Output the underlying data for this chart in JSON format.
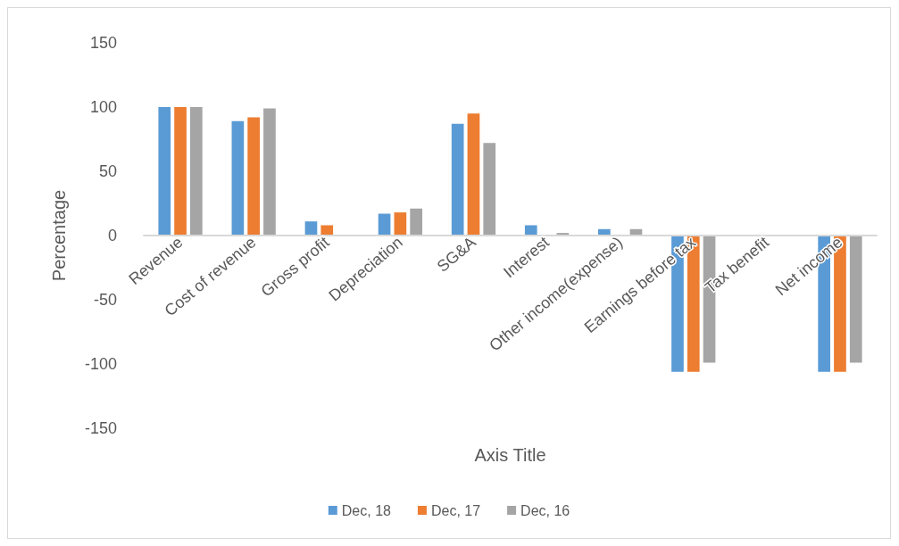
{
  "chart_data": {
    "type": "bar",
    "xlabel": "Axis Title",
    "ylabel": "Percentage",
    "categories": [
      "Revenue",
      "Cost of revenue",
      "Gross profit",
      "Depreciation",
      "SG&A",
      "Interest",
      "Other income(expense)",
      "Earnings before tax",
      "Tax benefit",
      "Net income"
    ],
    "series": [
      {
        "name": "Dec, 18",
        "color": "#5b9bd5",
        "values": [
          100,
          89,
          11,
          17,
          87,
          8,
          5,
          -106,
          0,
          -106
        ]
      },
      {
        "name": "Dec, 17",
        "color": "#ed7d31",
        "values": [
          100,
          92,
          8,
          18,
          95,
          0,
          0,
          -106,
          0,
          -106
        ]
      },
      {
        "name": "Dec, 16",
        "color": "#a5a5a5",
        "values": [
          100,
          99,
          0,
          21,
          72,
          2,
          5,
          -99,
          0,
          -99
        ]
      }
    ],
    "ylim": [
      -150,
      150
    ],
    "yticks": [
      -150,
      -100,
      -50,
      0,
      50,
      100,
      150
    ],
    "grid": false,
    "legend": "bottom"
  }
}
